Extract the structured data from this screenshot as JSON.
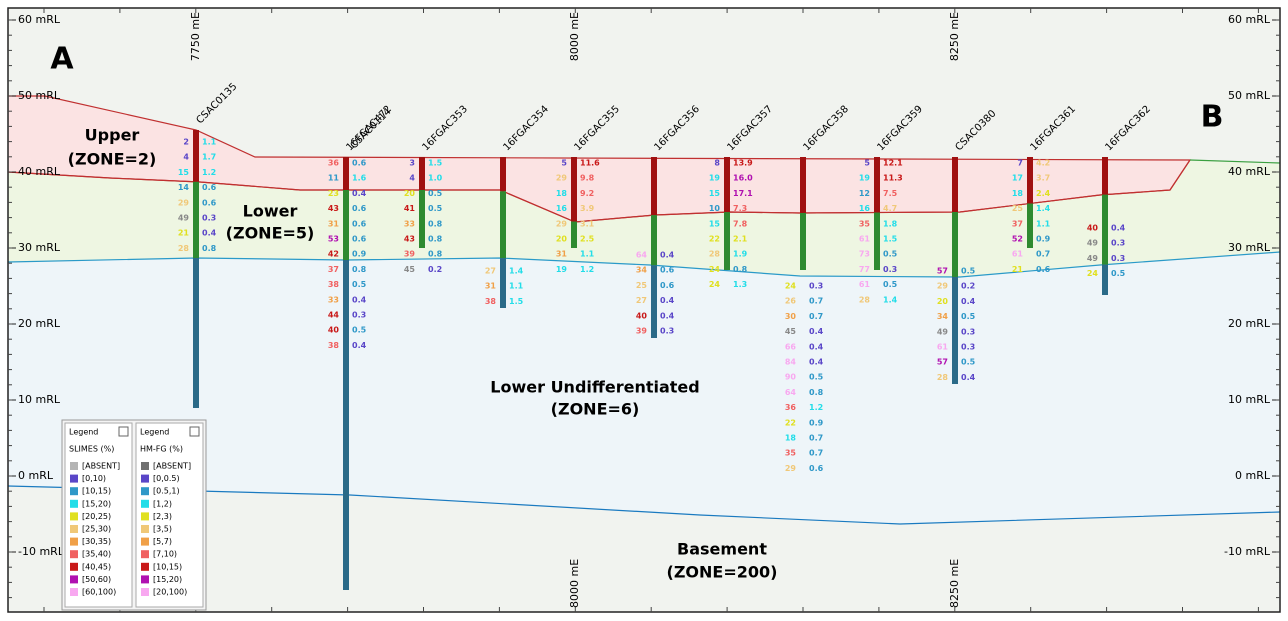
{
  "section": {
    "a": "A",
    "b": "B"
  },
  "rl_ticks": [
    "60 mRL",
    "50 mRL",
    "40 mRL",
    "30 mRL",
    "20 mRL",
    "10 mRL",
    "0 mRL",
    "-10 mRL"
  ],
  "easting_ticks_top": [
    "7750 mE",
    "8000 mE",
    "8250 mE"
  ],
  "easting_ticks_bottom": [
    "8000 mE",
    "8250 mE"
  ],
  "zones": [
    {
      "name": "Upper",
      "code": "(ZONE=2)"
    },
    {
      "name": "Lower",
      "code": "(ZONE=5)"
    },
    {
      "name": "Lower Undifferentiated",
      "code": "(ZONE=6)"
    },
    {
      "name": "Basement",
      "code": "(ZONE=200)"
    }
  ],
  "drillholes": [
    {
      "names": [
        "CSAC0135"
      ],
      "samples": [
        [
          "2",
          "1.1"
        ],
        [
          "4",
          "1.7"
        ],
        [
          "15",
          "1.2"
        ],
        [
          "14",
          "0.6"
        ],
        [
          "29",
          "0.6"
        ],
        [
          "49",
          "0.3"
        ],
        [
          "21",
          "0.4"
        ],
        [
          "28",
          "0.8"
        ]
      ]
    },
    {
      "names": [
        "16FGAC472",
        "CSAC0114"
      ],
      "samples": [
        [
          "36",
          "0.6"
        ],
        [
          "11",
          "1.6"
        ],
        [
          "23",
          "0.4"
        ],
        [
          "43",
          "0.6"
        ],
        [
          "31",
          "0.6"
        ],
        [
          "53",
          "0.6"
        ],
        [
          "42",
          "0.9"
        ],
        [
          "37",
          "0.8"
        ],
        [
          "38",
          "0.5"
        ],
        [
          "33",
          "0.4"
        ],
        [
          "44",
          "0.3"
        ],
        [
          "40",
          "0.5"
        ],
        [
          "38",
          "0.4"
        ]
      ]
    },
    {
      "names": [
        "16FGAC353"
      ],
      "samples": [
        [
          "3",
          "1.5"
        ],
        [
          "4",
          "1.0"
        ],
        [
          "20",
          "0.5"
        ],
        [
          "41",
          "0.5"
        ],
        [
          "33",
          "0.8"
        ],
        [
          "43",
          "0.8"
        ],
        [
          "39",
          "0.8"
        ],
        [
          "45",
          "0.2"
        ]
      ]
    },
    {
      "names": [
        "16FGAC354"
      ],
      "samples": [
        [
          "27",
          "1.4"
        ],
        [
          "31",
          "1.1"
        ],
        [
          "38",
          "1.5"
        ]
      ]
    },
    {
      "names": [
        "16FGAC355"
      ],
      "samples": [
        [
          "5",
          "11.6"
        ],
        [
          "29",
          "9.8"
        ],
        [
          "18",
          "9.2"
        ],
        [
          "16",
          "3.9"
        ],
        [
          "29",
          "3.1"
        ],
        [
          "20",
          "2.5"
        ],
        [
          "31",
          "1.1"
        ],
        [
          "19",
          "1.2"
        ]
      ]
    },
    {
      "names": [
        "16FGAC356"
      ],
      "samples": [
        [
          "64",
          "0.4"
        ],
        [
          "34",
          "0.6"
        ],
        [
          "25",
          "0.6"
        ],
        [
          "27",
          "0.4"
        ],
        [
          "40",
          "0.4"
        ],
        [
          "39",
          "0.3"
        ]
      ]
    },
    {
      "names": [
        "16FGAC357"
      ],
      "samples": [
        [
          "8",
          "13.9"
        ],
        [
          "19",
          "16.0"
        ],
        [
          "15",
          "17.1"
        ],
        [
          "10",
          "7.3"
        ],
        [
          "15",
          "7.8"
        ],
        [
          "22",
          "2.1"
        ],
        [
          "28",
          "1.9"
        ],
        [
          "24",
          "0.8"
        ],
        [
          "24",
          "1.3"
        ]
      ]
    },
    {
      "names": [
        "16FGAC358"
      ],
      "samples": [
        [
          "24",
          "0.3"
        ],
        [
          "26",
          "0.7"
        ],
        [
          "30",
          "0.7"
        ],
        [
          "45",
          "0.4"
        ],
        [
          "66",
          "0.4"
        ],
        [
          "84",
          "0.4"
        ],
        [
          "90",
          "0.5"
        ],
        [
          "64",
          "0.8"
        ],
        [
          "36",
          "1.2"
        ],
        [
          "22",
          "0.9"
        ],
        [
          "18",
          "0.7"
        ],
        [
          "35",
          "0.7"
        ],
        [
          "29",
          "0.6"
        ]
      ]
    },
    {
      "names": [
        "16FGAC359"
      ],
      "samples": [
        [
          "5",
          "12.1"
        ],
        [
          "19",
          "11.3"
        ],
        [
          "12",
          "7.5"
        ],
        [
          "16",
          "4.7"
        ],
        [
          "35",
          "1.8"
        ],
        [
          "61",
          "1.5"
        ],
        [
          "73",
          "0.5"
        ],
        [
          "77",
          "0.3"
        ],
        [
          "61",
          "0.5"
        ],
        [
          "28",
          "1.4"
        ]
      ]
    },
    {
      "names": [
        "CSAC0380"
      ],
      "samples": [
        [
          "57",
          "0.5"
        ],
        [
          "29",
          "0.2"
        ],
        [
          "20",
          "0.4"
        ],
        [
          "34",
          "0.5"
        ],
        [
          "49",
          "0.3"
        ],
        [
          "61",
          "0.3"
        ],
        [
          "57",
          "0.5"
        ],
        [
          "28",
          "0.4"
        ]
      ]
    },
    {
      "names": [
        "16FGAC361"
      ],
      "samples": [
        [
          "7",
          "4.2"
        ],
        [
          "17",
          "3.7"
        ],
        [
          "18",
          "2.4"
        ],
        [
          "25",
          "1.4"
        ],
        [
          "37",
          "1.1"
        ],
        [
          "52",
          "0.9"
        ],
        [
          "61",
          "0.7"
        ],
        [
          "21",
          "0.6"
        ]
      ]
    },
    {
      "names": [
        "16FGAC362"
      ],
      "samples": [
        [
          "40",
          "0.4"
        ],
        [
          "49",
          "0.3"
        ],
        [
          "49",
          "0.3"
        ],
        [
          "24",
          "0.5"
        ]
      ]
    }
  ],
  "legends": [
    {
      "title": "Legend",
      "field": "SLIMES (%)",
      "items": [
        {
          "label": "[ABSENT]",
          "color": "#b4b4b4"
        },
        {
          "label": "[0,10)",
          "color": "#5a46c8"
        },
        {
          "label": "[10,15)",
          "color": "#2f98c8"
        },
        {
          "label": "[15,20)",
          "color": "#22dde8"
        },
        {
          "label": "[20,25)",
          "color": "#e0e020"
        },
        {
          "label": "[25,30)",
          "color": "#f0c878"
        },
        {
          "label": "[30,35)",
          "color": "#f0a048"
        },
        {
          "label": "[35,40)",
          "color": "#f06060"
        },
        {
          "label": "[40,45)",
          "color": "#c81818"
        },
        {
          "label": "[50,60)",
          "color": "#b010b0"
        },
        {
          "label": "[60,100)",
          "color": "#f8a8f0"
        }
      ]
    },
    {
      "title": "Legend",
      "field": "HM-FG (%)",
      "items": [
        {
          "label": "[ABSENT]",
          "color": "#707070"
        },
        {
          "label": "[0,0.5)",
          "color": "#5a46c8"
        },
        {
          "label": "[0.5,1)",
          "color": "#2f98c8"
        },
        {
          "label": "[1,2)",
          "color": "#22dde8"
        },
        {
          "label": "[2,3)",
          "color": "#e0e020"
        },
        {
          "label": "[3,5)",
          "color": "#f0c878"
        },
        {
          "label": "[5,7)",
          "color": "#f0a048"
        },
        {
          "label": "[7,10)",
          "color": "#f06060"
        },
        {
          "label": "[10,15)",
          "color": "#c81818"
        },
        {
          "label": "[15,20)",
          "color": "#b010b0"
        },
        {
          "label": "[20,100)",
          "color": "#f8a8f0"
        }
      ]
    }
  ]
}
